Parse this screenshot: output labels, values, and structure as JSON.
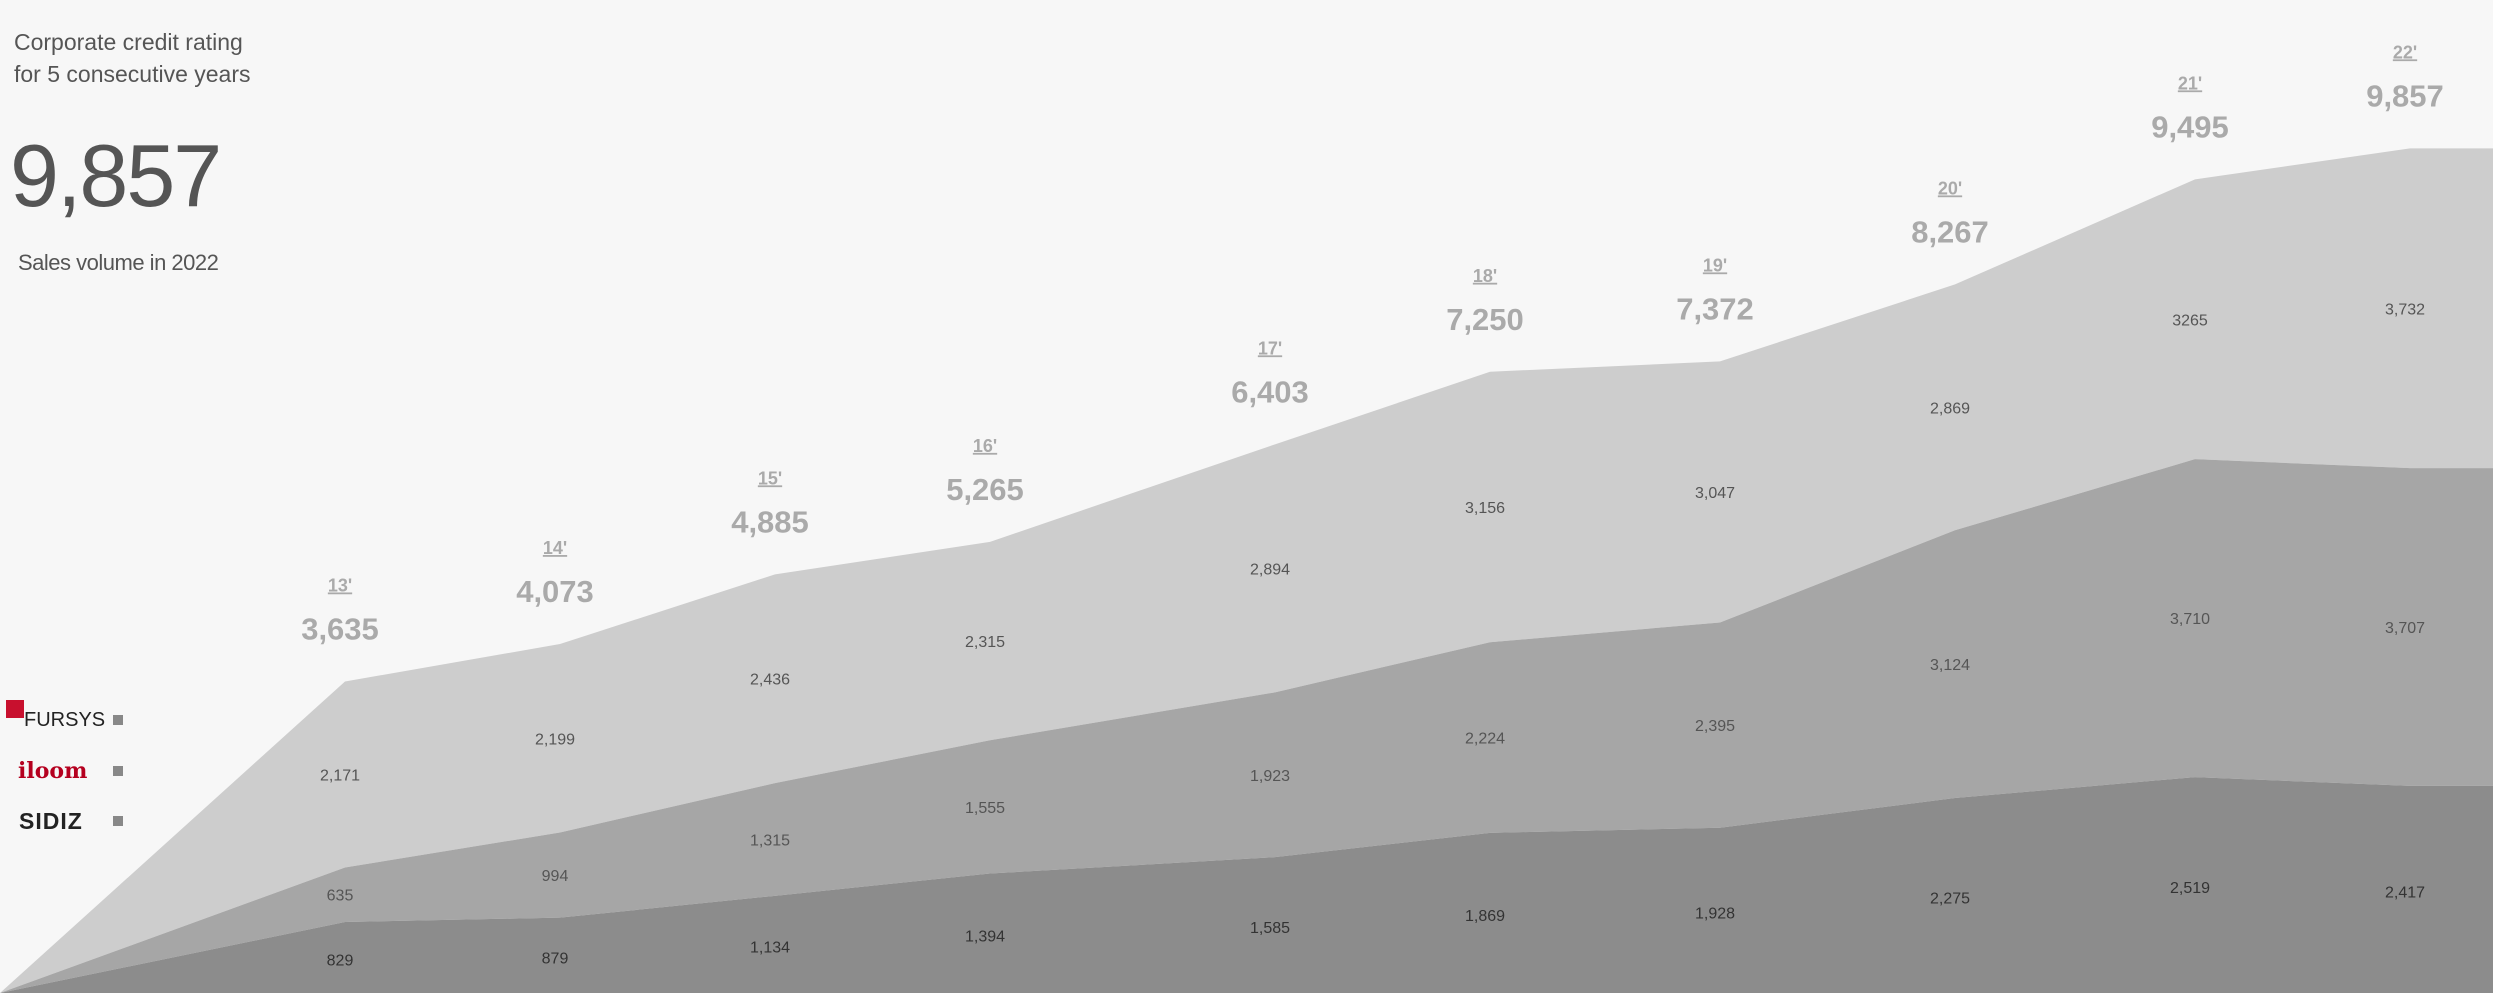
{
  "headline": {
    "line1": "Corporate credit rating",
    "line2": "for 5 consecutive years"
  },
  "big_number": "9,857",
  "sales_caption": "Sales volume in 2022",
  "legend": [
    {
      "label": "FURSYS",
      "brand_color": "#c8102e",
      "icon": "fursys-logo-square"
    },
    {
      "label": "iloom",
      "brand_color": "#b5001f"
    },
    {
      "label": "SIDIZ",
      "brand_color": "#222222"
    }
  ],
  "colors": {
    "background": "#f7f7f7",
    "layer_light": "#cdcdcd",
    "layer_mid": "#a6a6a6",
    "layer_dark": "#8c8c8c",
    "label_gray": "#aaaaaa"
  },
  "chart_data": {
    "type": "area",
    "stacked": true,
    "x": [
      "13'",
      "14'",
      "15'",
      "16'",
      "17'",
      "18'",
      "19'",
      "20'",
      "21'",
      "22'"
    ],
    "totals": [
      "3,635",
      "4,073",
      "4,885",
      "5,265",
      "6,403",
      "7,250",
      "7,372",
      "8,267",
      "9,495",
      "9,857"
    ],
    "series": [
      {
        "values": [
          829,
          879,
          1134,
          1394,
          1585,
          1869,
          1928,
          2275,
          2519,
          2417
        ],
        "labels": [
          "829",
          "879",
          "1,134",
          "1,394",
          "1,585",
          "1,869",
          "1,928",
          "2,275",
          "2,519",
          "2,417"
        ]
      },
      {
        "values": [
          635,
          994,
          1315,
          1555,
          1923,
          2224,
          2395,
          3124,
          3710,
          3707
        ],
        "labels": [
          "635",
          "994",
          "1,315",
          "1,555",
          "1,923",
          "2,224",
          "2,395",
          "3,124",
          "3,710",
          "3,707"
        ]
      },
      {
        "values": [
          2171,
          2199,
          2436,
          2315,
          2894,
          3156,
          3047,
          2869,
          3265,
          3732
        ],
        "labels": [
          "2,171",
          "2,199",
          "2,436",
          "2,315",
          "2,894",
          "3,156",
          "3,047",
          "2,869",
          "3265",
          "3,732"
        ]
      }
    ]
  }
}
